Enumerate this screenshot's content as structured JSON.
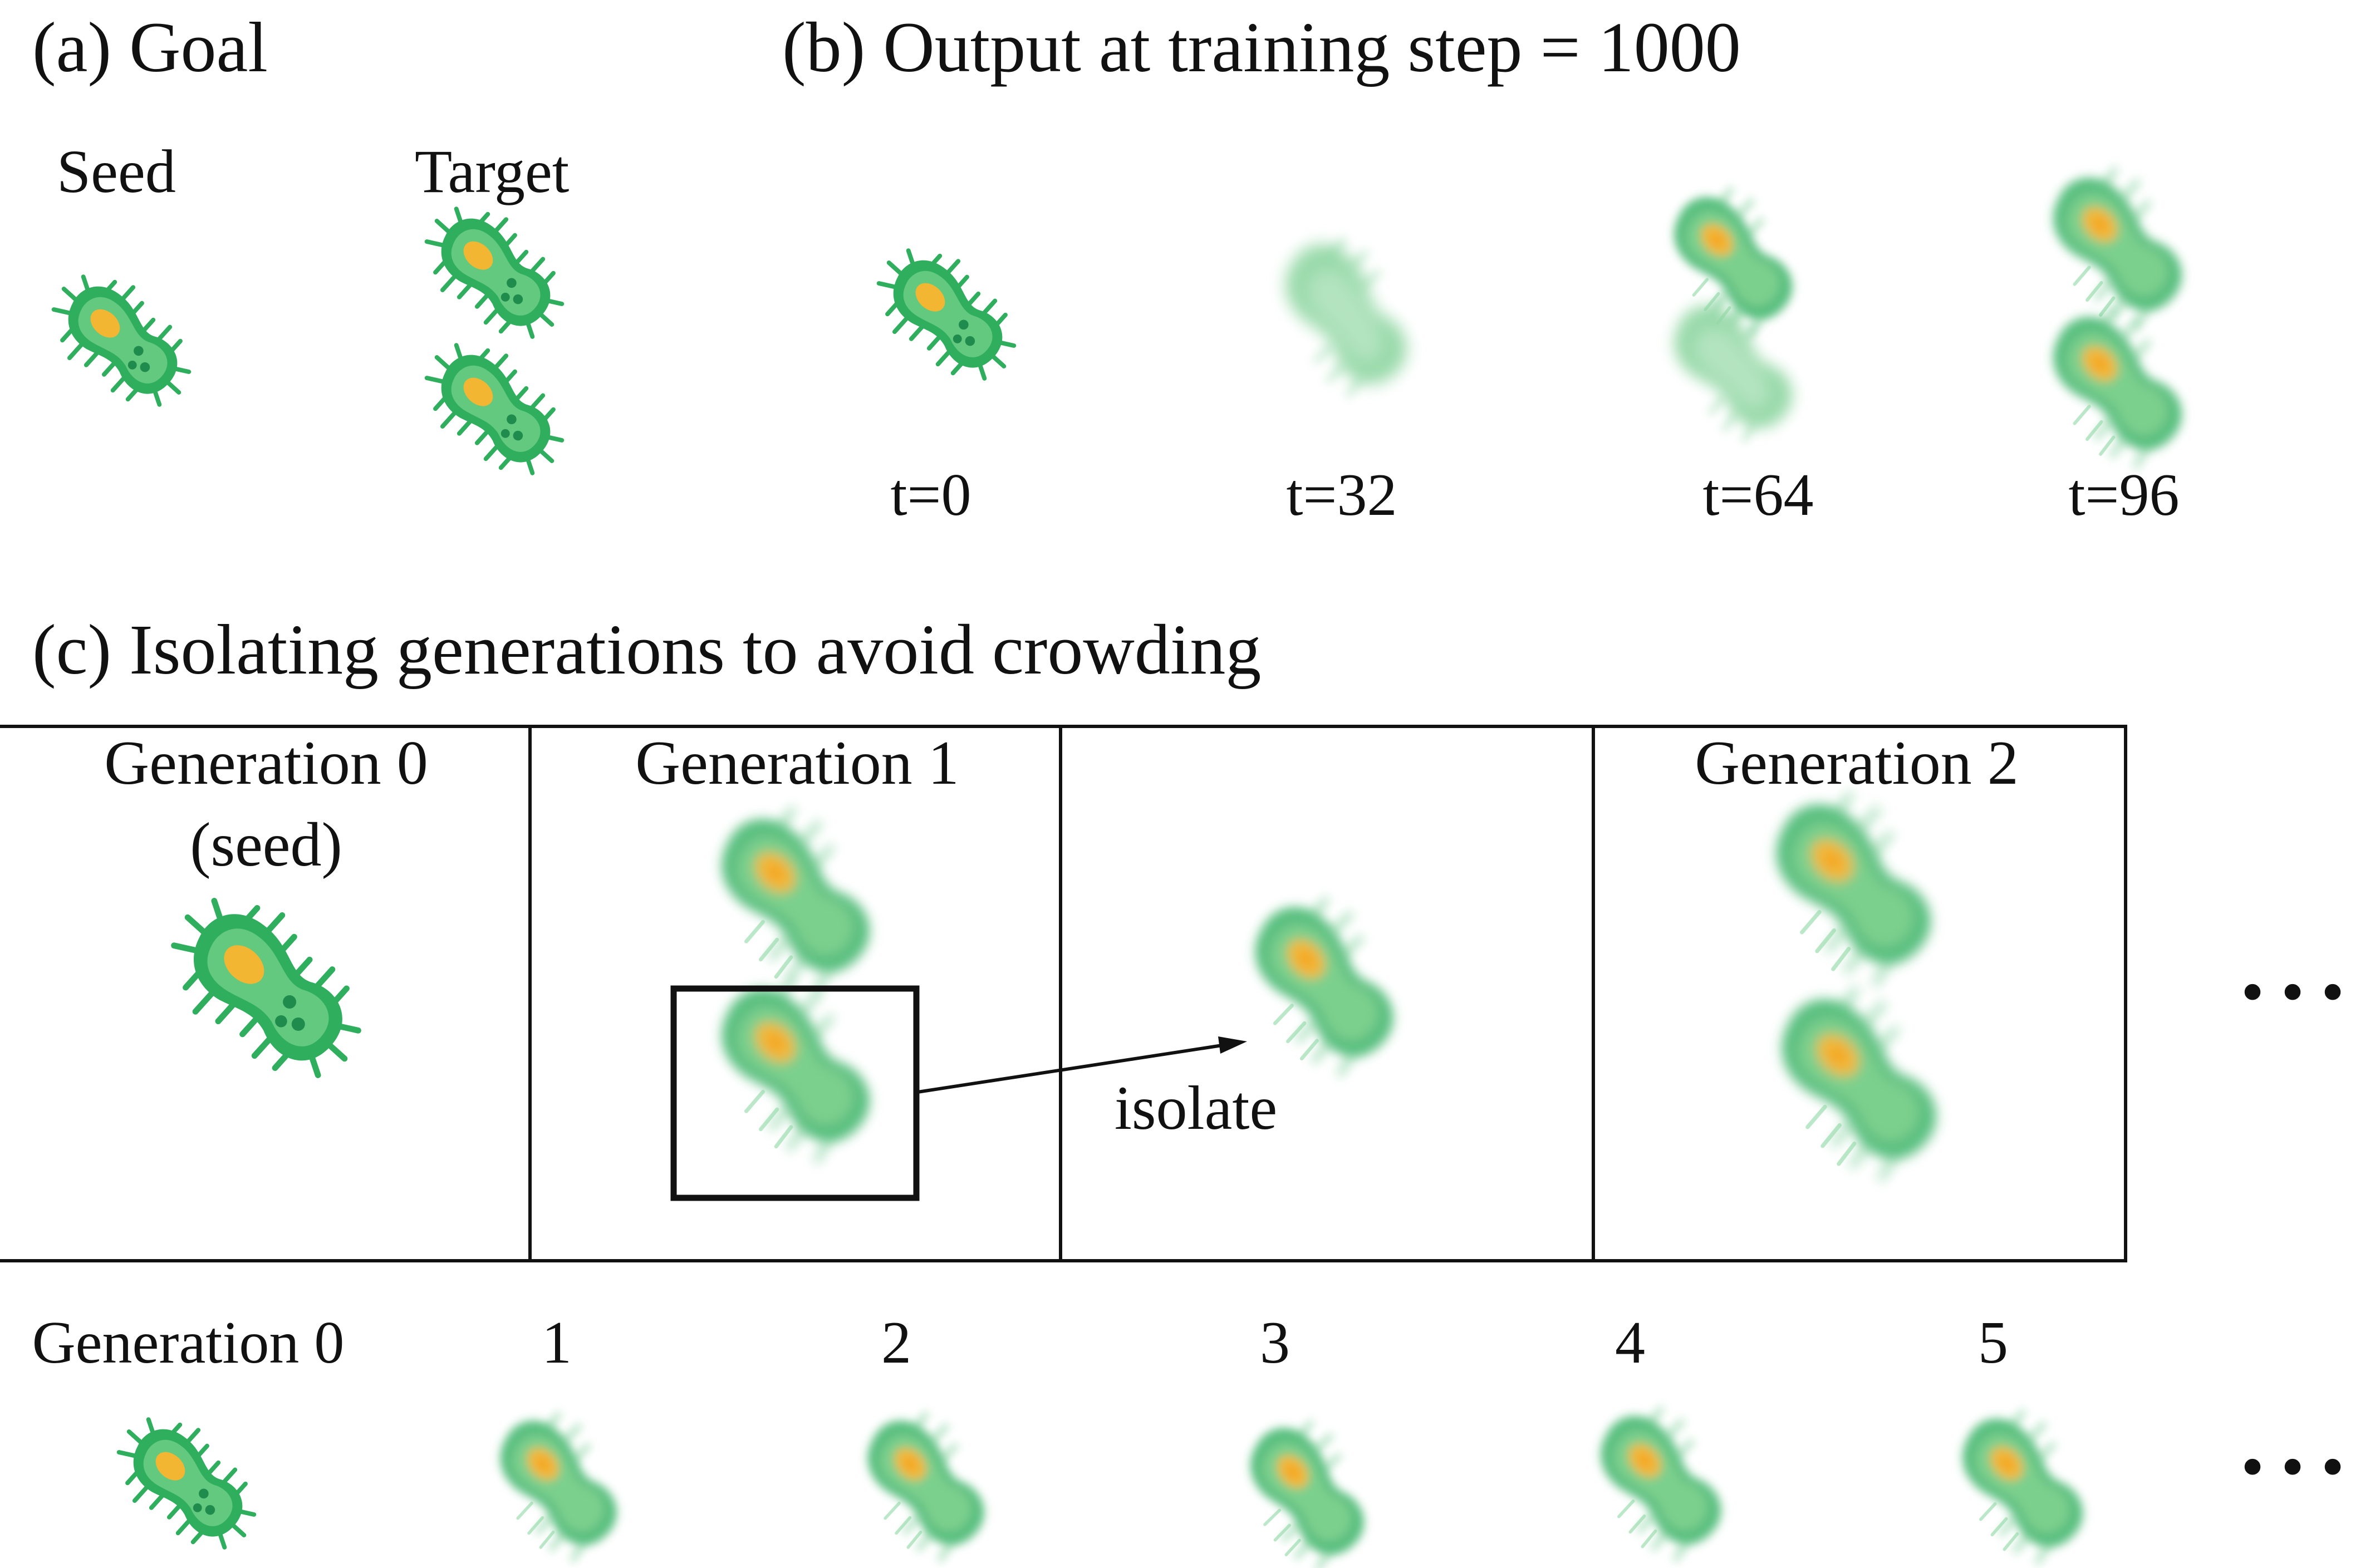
{
  "panel_a": {
    "title": "(a) Goal",
    "seed_label": "Seed",
    "target_label": "Target"
  },
  "panel_b": {
    "title": "(b) Output at training step = 1000",
    "frames": [
      {
        "label": "t=0"
      },
      {
        "label": "t=32"
      },
      {
        "label": "t=64"
      },
      {
        "label": "t=96"
      }
    ]
  },
  "panel_c": {
    "title": "(c) Isolating generations to avoid crowding",
    "gen0_label": "Generation 0",
    "gen0_sub": "(seed)",
    "gen1_label": "Generation 1",
    "gen2_label": "Generation 2",
    "isolate_label": "isolate",
    "ellipsis": "• • •"
  },
  "bottom_row": {
    "labels": [
      "Generation 0",
      "1",
      "2",
      "3",
      "4",
      "5"
    ],
    "ellipsis": "• • •"
  },
  "colors": {
    "body_dark": "#27a05a",
    "body_light": "#5fc77c",
    "nucleus": "#f2b632",
    "frame": "#111111"
  }
}
